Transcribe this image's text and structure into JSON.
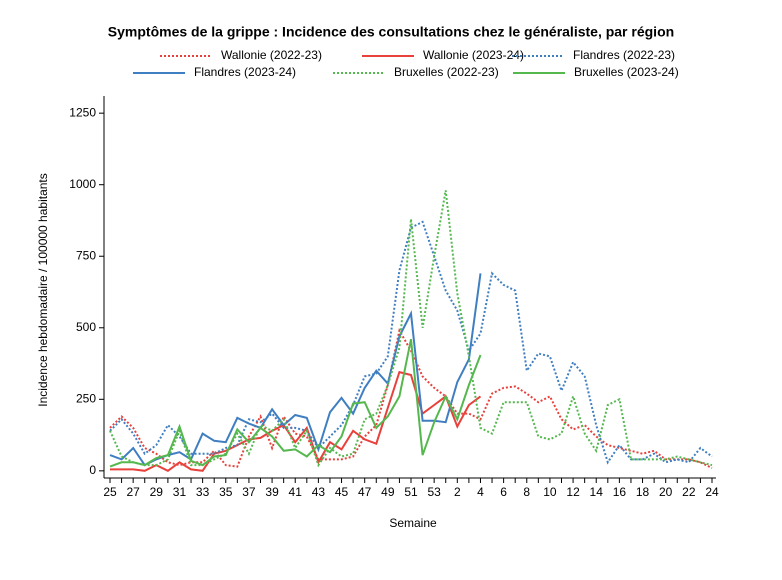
{
  "chart_data": {
    "type": "line",
    "title": "Symptômes de la grippe : Incidence des consultations chez le généraliste, par région",
    "x_label": "Semaine",
    "y_label": "Incidence hebdomadaire / 100000 habitants",
    "categories": [
      "25",
      null,
      "27",
      null,
      "29",
      null,
      "31",
      null,
      "33",
      null,
      "35",
      null,
      "37",
      null,
      "39",
      null,
      "41",
      null,
      "43",
      null,
      "45",
      null,
      "47",
      null,
      "49",
      null,
      "51",
      null,
      "53",
      null,
      "2",
      null,
      "4",
      null,
      "6",
      null,
      "8",
      null,
      "10",
      null,
      "12",
      null,
      "14",
      null,
      "16",
      null,
      "18",
      null,
      "20",
      null,
      "22",
      null,
      "24"
    ],
    "ylim": [
      -25,
      1310
    ],
    "yticks": [
      0,
      250,
      500,
      750,
      1000,
      1250
    ],
    "series": [
      {
        "name": "Wallonie (2022-23)",
        "color": "#e8413c",
        "style": "dotted",
        "values": [
          150,
          190,
          150,
          80,
          60,
          30,
          20,
          30,
          30,
          70,
          20,
          15,
          120,
          190,
          80,
          190,
          130,
          120,
          40,
          40,
          40,
          50,
          120,
          160,
          300,
          490,
          420,
          330,
          290,
          260,
          200,
          200,
          180,
          270,
          290,
          295,
          270,
          240,
          260,
          180,
          145,
          160,
          120,
          90,
          80,
          70,
          60,
          70,
          40,
          40,
          40,
          30,
          10
        ]
      },
      {
        "name": "Wallonie (2023-24)",
        "color": "#e8413c",
        "style": "solid",
        "values": [
          5,
          5,
          5,
          0,
          20,
          0,
          30,
          5,
          0,
          60,
          70,
          90,
          110,
          115,
          140,
          160,
          100,
          150,
          30,
          100,
          75,
          140,
          110,
          95,
          220,
          345,
          335,
          200,
          230,
          260,
          155,
          230,
          260,
          null,
          null,
          null,
          null,
          null,
          null,
          null,
          null,
          null,
          null,
          null,
          null,
          null,
          null,
          null,
          null,
          null,
          null,
          null,
          null
        ]
      },
      {
        "name": "Flandres (2022-23)",
        "color": "#3f7fc1",
        "style": "dotted",
        "values": [
          140,
          180,
          130,
          60,
          90,
          160,
          120,
          60,
          60,
          60,
          80,
          90,
          180,
          170,
          200,
          150,
          150,
          140,
          80,
          120,
          160,
          230,
          330,
          340,
          400,
          700,
          850,
          870,
          750,
          630,
          560,
          420,
          480,
          690,
          650,
          630,
          350,
          410,
          400,
          280,
          380,
          330,
          160,
          30,
          90,
          40,
          40,
          60,
          30,
          40,
          30,
          80,
          50
        ]
      },
      {
        "name": "Flandres (2023-24)",
        "color": "#3f7fc1",
        "style": "solid",
        "values": [
          55,
          40,
          80,
          20,
          40,
          55,
          65,
          40,
          130,
          105,
          100,
          185,
          165,
          150,
          215,
          160,
          195,
          185,
          75,
          205,
          255,
          200,
          290,
          350,
          305,
          470,
          550,
          175,
          175,
          170,
          310,
          390,
          690,
          null,
          null,
          null,
          null,
          null,
          null,
          null,
          null,
          null,
          null,
          null,
          null,
          null,
          null,
          null,
          null,
          null,
          null,
          null,
          null
        ]
      },
      {
        "name": "Bruxelles (2022-23)",
        "color": "#55b84f",
        "style": "dotted",
        "values": [
          140,
          50,
          30,
          20,
          20,
          40,
          140,
          20,
          20,
          40,
          60,
          130,
          60,
          160,
          140,
          180,
          80,
          140,
          20,
          80,
          50,
          60,
          180,
          200,
          300,
          430,
          880,
          500,
          750,
          980,
          620,
          400,
          150,
          130,
          240,
          240,
          240,
          120,
          110,
          130,
          260,
          130,
          70,
          230,
          250,
          40,
          40,
          40,
          40,
          50,
          40,
          30,
          20
        ]
      },
      {
        "name": "Bruxelles (2023-24)",
        "color": "#55b84f",
        "style": "solid",
        "values": [
          15,
          30,
          30,
          20,
          45,
          55,
          155,
          35,
          20,
          50,
          55,
          145,
          100,
          150,
          120,
          70,
          75,
          50,
          90,
          65,
          120,
          235,
          240,
          150,
          190,
          260,
          460,
          55,
          170,
          260,
          180,
          300,
          405,
          null,
          null,
          null,
          null,
          null,
          null,
          null,
          null,
          null,
          null,
          null,
          null,
          null,
          null,
          null,
          null,
          null,
          null,
          null,
          null
        ]
      }
    ]
  }
}
